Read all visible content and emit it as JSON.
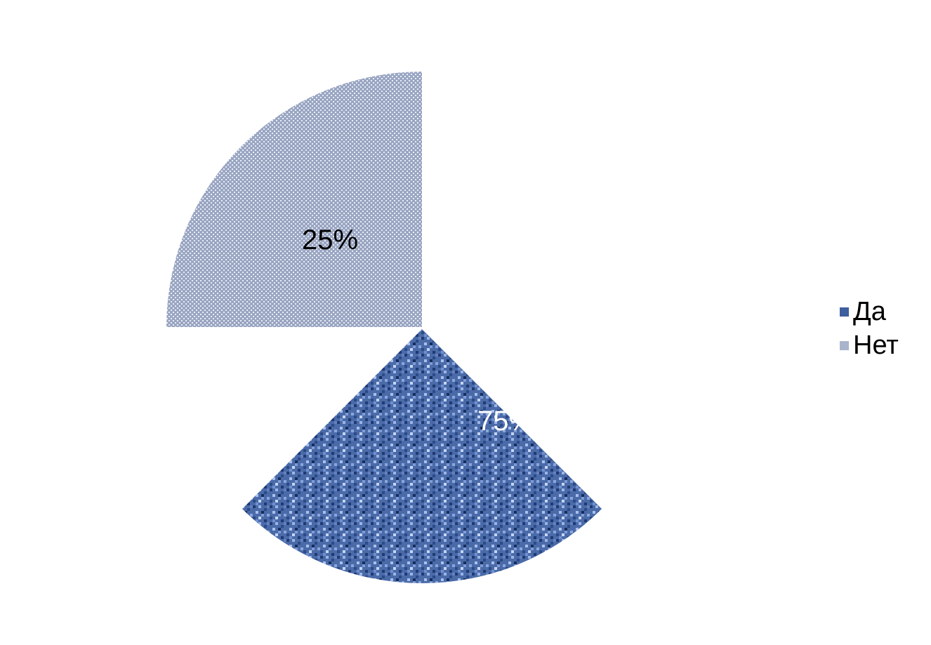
{
  "chart_data": {
    "type": "pie",
    "title": "",
    "categories": [
      "Да",
      "Нет"
    ],
    "values": [
      75,
      25
    ],
    "labels": [
      "75%",
      "25%"
    ],
    "start_angle_deg": 0,
    "exploded": true,
    "legend": {
      "placement": "right",
      "entries": [
        "Да",
        "Нет"
      ]
    },
    "colors": {
      "Да": "#3f5f9e",
      "Нет": "#a9b4cc",
      "label_on_dark": "#ffffff",
      "label_on_light": "#000000"
    }
  }
}
